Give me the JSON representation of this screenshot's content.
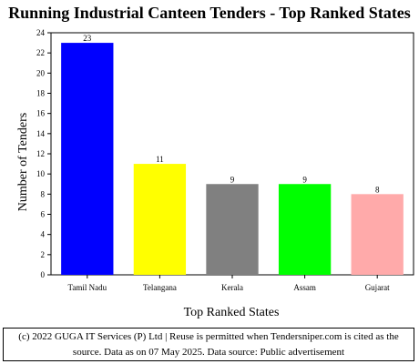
{
  "chart_data": {
    "type": "bar",
    "title": "Running Industrial Canteen Tenders - Top Ranked States",
    "xlabel": "Top Ranked States",
    "ylabel": "Number of Tenders",
    "categories": [
      "Tamil Nadu",
      "Telangana",
      "Kerala",
      "Assam",
      "Gujarat"
    ],
    "values": [
      23,
      11,
      9,
      9,
      8
    ],
    "bar_colors": [
      "#0000ff",
      "#ffff00",
      "#808080",
      "#00ff00",
      "#ffaaaa"
    ],
    "ylim": [
      0,
      24
    ],
    "yticks": [
      0,
      2,
      4,
      6,
      8,
      10,
      12,
      14,
      16,
      18,
      20,
      22,
      24
    ],
    "grid": false,
    "legend": "none"
  },
  "footer": {
    "line1": "(c) 2022 GUGA IT Services (P) Ltd | Reuse is permitted when Tendersniper.com is cited as the",
    "line2": "source. Data as on 07 May 2025. Data source: Public advertisement"
  }
}
